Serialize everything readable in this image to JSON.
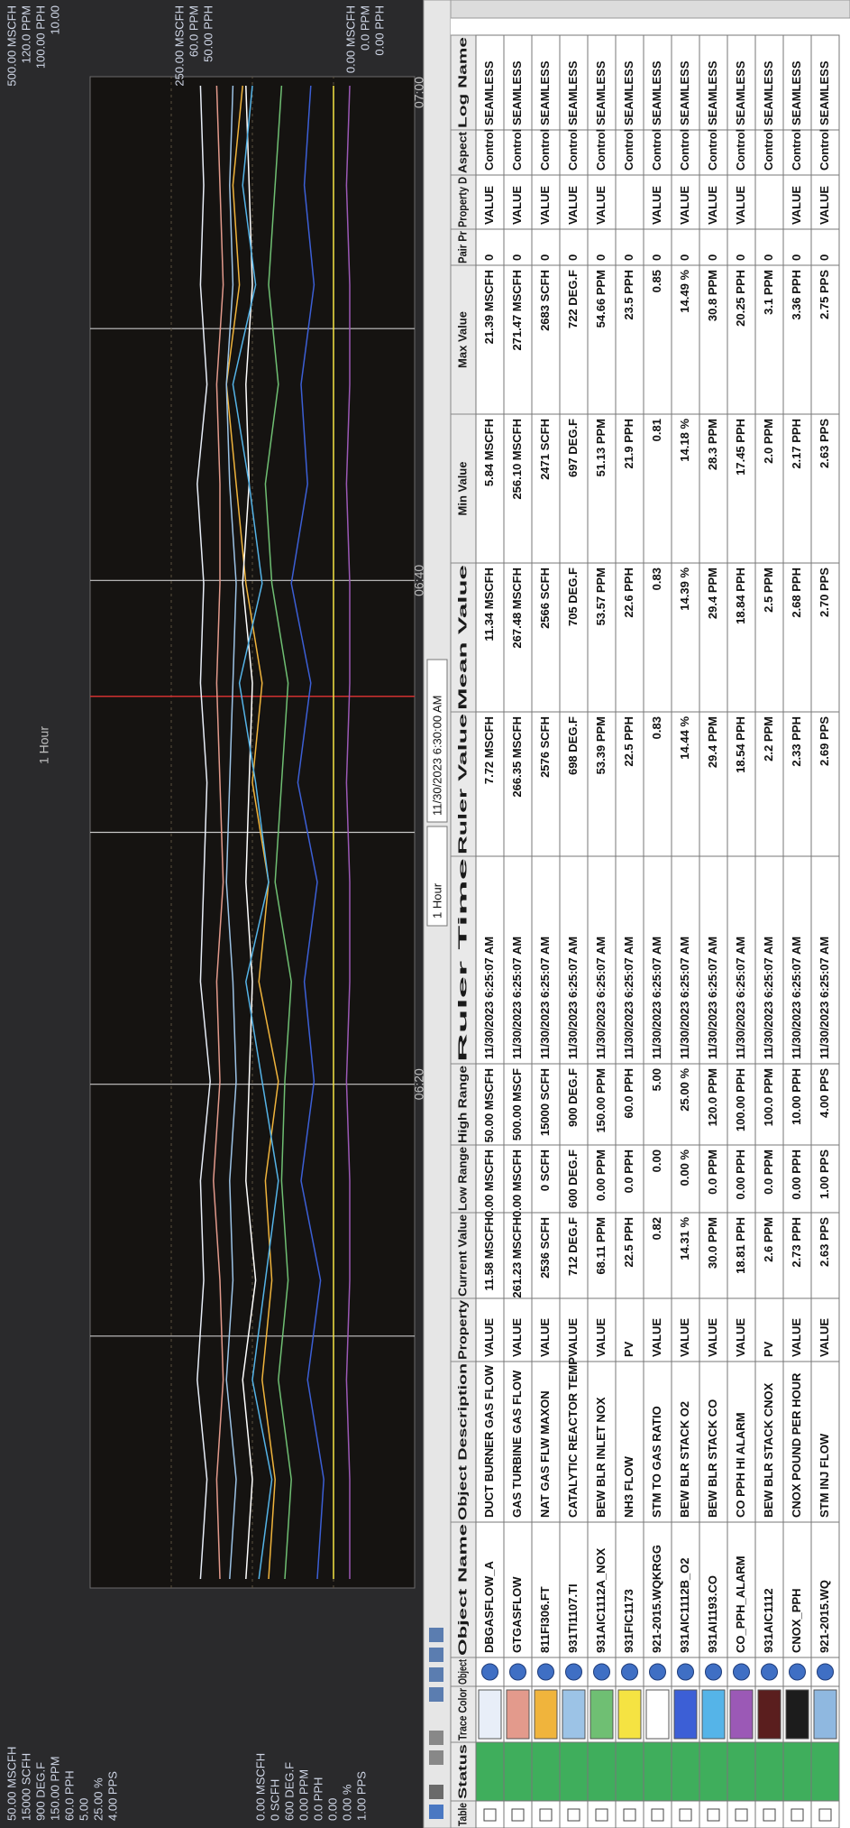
{
  "chart": {
    "title": "1 Hour",
    "time_labels": [
      "06:20",
      "06:40",
      "07:00"
    ],
    "left_scale_top": [
      "50.00 MSCFH",
      "15000 SCFH",
      "900 DEG.F",
      "150.00 PPM",
      "60.0 PPH",
      "5.00",
      "25.00 %",
      "4.00 PPS"
    ],
    "left_scale_bottom": [
      "0.00 MSCFH",
      "0 SCFH",
      "600 DEG.F",
      "0.00 PPM",
      "0.0 PPH",
      "0.00",
      "0.00 %",
      "1.00 PPS"
    ],
    "right_scale_top": [
      "500.00 MSCFH",
      "120.0 PPM",
      "100.00 PPH",
      "10.00"
    ],
    "right_scale_mid": [
      "250.00 MSCFH",
      "60.0 PPM",
      "50.00 PPH"
    ],
    "right_scale_bottom": [
      "0.00 MSCFH",
      "0.0 PPM",
      "0.00 PPH"
    ],
    "ylim": [
      0,
      100
    ],
    "traces": [
      {
        "color": "#e8eef8",
        "values": [
          66,
          64,
          67,
          65,
          66,
          63,
          66,
          65,
          64,
          66,
          65,
          67,
          64,
          66,
          65,
          66
        ]
      },
      {
        "color": "#e39a8c",
        "values": [
          60,
          61,
          59,
          60,
          62,
          60,
          61,
          59,
          60,
          61,
          60,
          60,
          61,
          59,
          60,
          61
        ]
      },
      {
        "color": "#f0b43c",
        "values": [
          45,
          43,
          47,
          44,
          46,
          42,
          48,
          45,
          50,
          47,
          52,
          55,
          58,
          54,
          56,
          53
        ]
      },
      {
        "color": "#9cc3e6",
        "values": [
          57,
          55,
          58,
          56,
          57,
          55,
          56,
          58,
          57,
          56,
          55,
          57,
          58,
          56,
          57,
          56
        ]
      },
      {
        "color": "#6fbf73",
        "values": [
          40,
          38,
          42,
          39,
          41,
          40,
          38,
          43,
          41,
          39,
          44,
          46,
          42,
          45,
          43,
          41
        ]
      },
      {
        "color": "#f5e342",
        "values": [
          25,
          25,
          25,
          25,
          25,
          25,
          25,
          25,
          25,
          25,
          25,
          25,
          25,
          25,
          25,
          25
        ]
      },
      {
        "color": "#ffffff",
        "values": [
          52,
          50,
          53,
          49,
          52,
          51,
          50,
          52,
          51,
          50,
          53,
          51,
          52,
          50,
          51,
          52
        ]
      },
      {
        "color": "#3c5fd6",
        "values": [
          30,
          28,
          33,
          29,
          35,
          31,
          34,
          30,
          36,
          32,
          38,
          33,
          35,
          31,
          34,
          32
        ]
      },
      {
        "color": "#55b4e8",
        "values": [
          48,
          44,
          50,
          46,
          42,
          47,
          52,
          45,
          49,
          54,
          47,
          51,
          56,
          49,
          53,
          50
        ]
      },
      {
        "color": "#9b59b6",
        "values": [
          20,
          20,
          21,
          20,
          20,
          21,
          20,
          20,
          21,
          20,
          20,
          21,
          20,
          20,
          21,
          20
        ]
      }
    ]
  },
  "toolbar": {
    "range": "1 Hour",
    "datetime": "11/30/2023 6:30:00 AM"
  },
  "table": {
    "columns": [
      "Table",
      "Status",
      "Trace Color",
      "Object",
      "Object Name",
      "Object Description",
      "Property",
      "Current Value",
      "Low Range",
      "High Range",
      "Ruler Time",
      "Ruler Value",
      "Mean Value",
      "Min Value",
      "Max Value",
      "Pair Pr",
      "Property D",
      "Aspect",
      "Log Name"
    ],
    "rows": [
      {
        "color": "#e8eef8",
        "cells": [
          "DBGASFLOW_A",
          "DUCT BURNER GAS FLOW",
          "VALUE",
          "11.58 MSCFH",
          "0.00 MSCFH",
          "50.00 MSCFH",
          "11/30/2023 6:25:07 AM",
          "7.72 MSCFH",
          "11.34 MSCFH",
          "5.84 MSCFH",
          "21.39 MSCFH",
          "0",
          "VALUE",
          "Control",
          "SEAMLESS"
        ]
      },
      {
        "color": "#e39a8c",
        "cells": [
          "GTGASFLOW",
          "GAS TURBINE GAS FLOW",
          "VALUE",
          "261.23 MSCFH",
          "0.00 MSCFH",
          "500.00 MSCF",
          "11/30/2023 6:25:07 AM",
          "266.35 MSCFH",
          "267.48 MSCFH",
          "256.10 MSCFH",
          "271.47 MSCFH",
          "0",
          "VALUE",
          "Control",
          "SEAMLESS"
        ]
      },
      {
        "color": "#f0b43c",
        "cells": [
          "811FI306.FT",
          "NAT GAS FLW MAXON",
          "VALUE",
          "2536 SCFH",
          "0 SCFH",
          "15000 SCFH",
          "11/30/2023 6:25:07 AM",
          "2576 SCFH",
          "2566 SCFH",
          "2471 SCFH",
          "2683 SCFH",
          "0",
          "VALUE",
          "Control",
          "SEAMLESS"
        ]
      },
      {
        "color": "#9cc3e6",
        "cells": [
          "931TI1107.TI",
          "CATALYTIC REACTOR TEMP",
          "VALUE",
          "712 DEG.F",
          "600 DEG.F",
          "900 DEG.F",
          "11/30/2023 6:25:07 AM",
          "698 DEG.F",
          "705 DEG.F",
          "697 DEG.F",
          "722 DEG.F",
          "0",
          "VALUE",
          "Control",
          "SEAMLESS"
        ]
      },
      {
        "color": "#6fbf73",
        "cells": [
          "931AIC1112A_NOX",
          "BEW BLR INLET NOX",
          "VALUE",
          "68.11 PPM",
          "0.00 PPM",
          "150.00 PPM",
          "11/30/2023 6:25:07 AM",
          "53.39 PPM",
          "53.57 PPM",
          "51.13 PPM",
          "54.66 PPM",
          "0",
          "VALUE",
          "Control",
          "SEAMLESS"
        ]
      },
      {
        "color": "#f5e342",
        "cells": [
          "931FIC1173",
          "NH3 FLOW",
          "PV",
          "22.5 PPH",
          "0.0 PPH",
          "60.0 PPH",
          "11/30/2023 6:25:07 AM",
          "22.5 PPH",
          "22.6 PPH",
          "21.9 PPH",
          "23.5 PPH",
          "0",
          null,
          "Control",
          "SEAMLESS"
        ]
      },
      {
        "color": "#ffffff",
        "cells": [
          "921-2015.WQKRGG",
          "STM TO GAS RATIO",
          "VALUE",
          "0.82",
          "0.00",
          "5.00",
          "11/30/2023 6:25:07 AM",
          "0.83",
          "0.83",
          "0.81",
          "0.85",
          "0",
          "VALUE",
          "Control",
          "SEAMLESS"
        ]
      },
      {
        "color": "#3c5fd6",
        "cells": [
          "931AIC1112B_O2",
          "BEW BLR STACK O2",
          "VALUE",
          "14.31 %",
          "0.00 %",
          "25.00 %",
          "11/30/2023 6:25:07 AM",
          "14.44 %",
          "14.39 %",
          "14.18 %",
          "14.49 %",
          "0",
          "VALUE",
          "Control",
          "SEAMLESS"
        ]
      },
      {
        "color": "#55b4e8",
        "cells": [
          "931AI1193.CO",
          "BEW BLR STACK CO",
          "VALUE",
          "30.0 PPM",
          "0.0 PPM",
          "120.0 PPM",
          "11/30/2023 6:25:07 AM",
          "29.4 PPM",
          "29.4 PPM",
          "28.3 PPM",
          "30.8 PPM",
          "0",
          "VALUE",
          "Control",
          "SEAMLESS"
        ]
      },
      {
        "color": "#9b59b6",
        "cells": [
          "CO_PPH_ALARM",
          "CO PPH HI ALARM",
          "VALUE",
          "18.81 PPH",
          "0.00 PPH",
          "100.00 PPH",
          "11/30/2023 6:25:07 AM",
          "18.54 PPH",
          "18.84 PPH",
          "17.45 PPH",
          "20.25 PPH",
          "0",
          "VALUE",
          "Control",
          "SEAMLESS"
        ]
      },
      {
        "color": "#5a1e1e",
        "cells": [
          "931AIC1112",
          "BEW BLR STACK CNOX",
          "PV",
          "2.6 PPM",
          "0.0 PPM",
          "100.0 PPM",
          "11/30/2023 6:25:07 AM",
          "2.2 PPM",
          "2.5 PPM",
          "2.0 PPM",
          "3.1 PPM",
          "0",
          null,
          "Control",
          "SEAMLESS"
        ]
      },
      {
        "color": "#1c1c1c",
        "cells": [
          "CNOX_PPH",
          "CNOX POUND PER HOUR",
          "VALUE",
          "2.73 PPH",
          "0.00 PPH",
          "10.00 PPH",
          "11/30/2023 6:25:07 AM",
          "2.33 PPH",
          "2.68 PPH",
          "2.17 PPH",
          "3.36 PPH",
          "0",
          "VALUE",
          "Control",
          "SEAMLESS"
        ]
      },
      {
        "color": "#8fb8e0",
        "cells": [
          "921-2015.WQ",
          "STM INJ FLOW",
          "VALUE",
          "2.63 PPS",
          "1.00 PPS",
          "4.00 PPS",
          "11/30/2023 6:25:07 AM",
          "2.69 PPS",
          "2.70 PPS",
          "2.63 PPS",
          "2.75 PPS",
          "0",
          "VALUE",
          "Control",
          "SEAMLESS"
        ]
      }
    ]
  }
}
